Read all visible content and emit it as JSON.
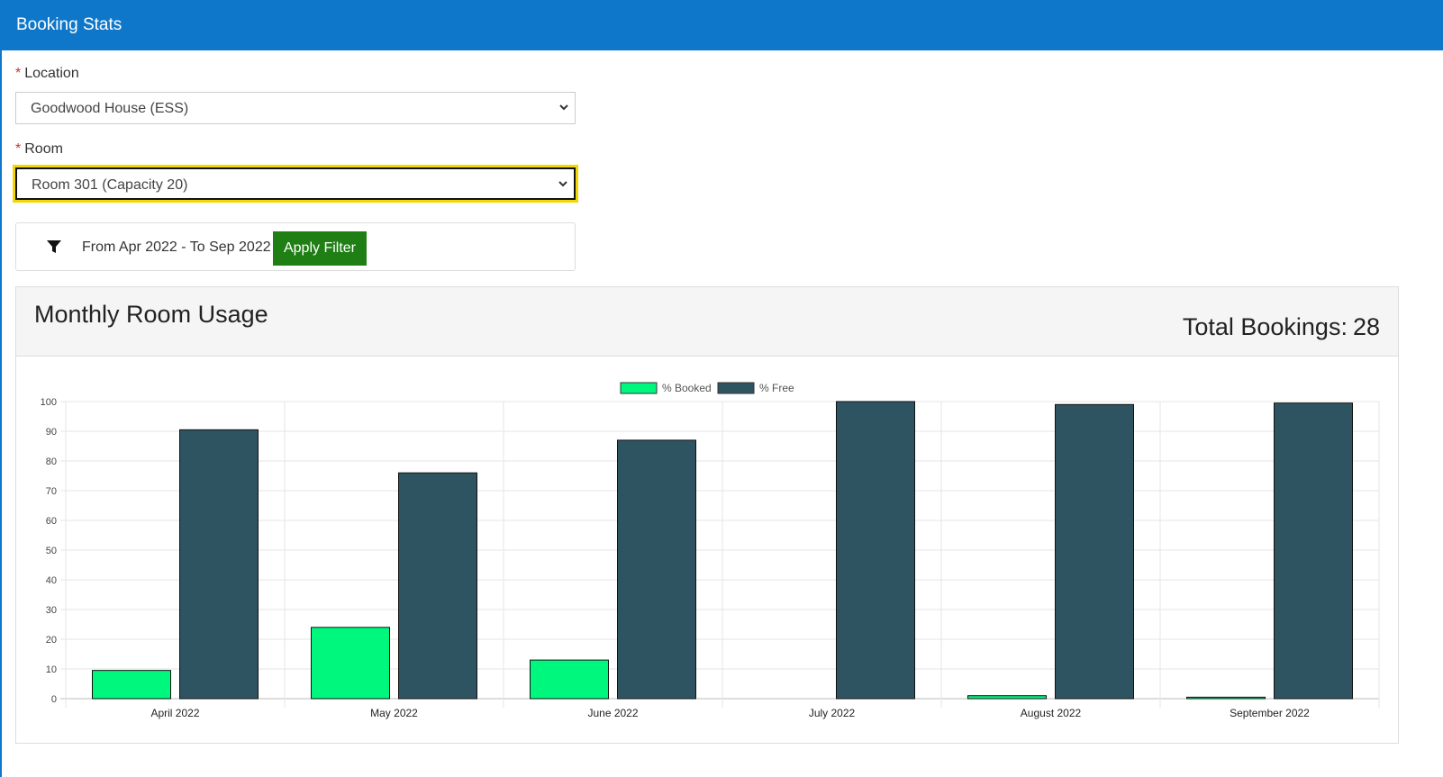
{
  "header": {
    "title": "Booking Stats"
  },
  "form": {
    "location": {
      "label": "Location",
      "required": "*",
      "value": "Goodwood House (ESS)"
    },
    "room": {
      "label": "Room",
      "required": "*",
      "value": "Room 301 (Capacity 20)"
    }
  },
  "filter": {
    "icon": "filter-icon",
    "range_text": "From Apr 2022 - To Sep 2022",
    "apply_label": "Apply Filter"
  },
  "panel": {
    "title": "Monthly Room Usage",
    "total_label": "Total Bookings:",
    "total_value": "28"
  },
  "colors": {
    "header": "#0f77c9",
    "booked": "#00f77e",
    "free": "#2f5461",
    "apply": "#1f7f14",
    "focus": "#f2d800"
  },
  "chart_data": {
    "type": "bar",
    "categories": [
      "April 2022",
      "May 2022",
      "June 2022",
      "July 2022",
      "August 2022",
      "September 2022"
    ],
    "series": [
      {
        "name": "% Booked",
        "values": [
          9.5,
          24,
          13,
          0,
          1,
          0.5
        ]
      },
      {
        "name": "% Free",
        "values": [
          90.5,
          76,
          87,
          100,
          99,
          99.5
        ]
      }
    ],
    "ylim": [
      0,
      100
    ],
    "yticks": [
      0,
      10,
      20,
      30,
      40,
      50,
      60,
      70,
      80,
      90,
      100
    ],
    "legend": "top-center",
    "grid": true
  }
}
